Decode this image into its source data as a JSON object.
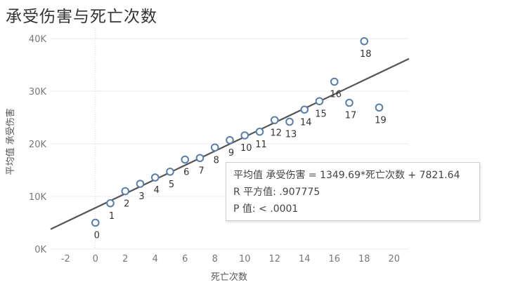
{
  "title": "承受伤害与死亡次数",
  "chart_data": {
    "type": "scatter",
    "title": "承受伤害与死亡次数",
    "xlabel": "死亡次数",
    "ylabel": "平均值 承受伤害",
    "xlim": [
      -3,
      21
    ],
    "ylim": [
      0,
      42000
    ],
    "x_ticks": [
      -2,
      0,
      2,
      4,
      6,
      8,
      10,
      12,
      14,
      16,
      18,
      20
    ],
    "y_ticks": [
      0,
      10000,
      20000,
      30000,
      40000
    ],
    "y_tick_labels": [
      "0K",
      "10K",
      "20K",
      "30K",
      "40K"
    ],
    "points": [
      {
        "x": 0,
        "y": 5000,
        "label": "0"
      },
      {
        "x": 1,
        "y": 8700,
        "label": "1"
      },
      {
        "x": 2,
        "y": 11000,
        "label": "2"
      },
      {
        "x": 3,
        "y": 12400,
        "label": "3"
      },
      {
        "x": 4,
        "y": 13600,
        "label": "4"
      },
      {
        "x": 5,
        "y": 14700,
        "label": "5"
      },
      {
        "x": 6,
        "y": 17000,
        "label": "6"
      },
      {
        "x": 7,
        "y": 17300,
        "label": "7"
      },
      {
        "x": 8,
        "y": 19300,
        "label": "8"
      },
      {
        "x": 9,
        "y": 20700,
        "label": "9"
      },
      {
        "x": 10,
        "y": 21600,
        "label": "10"
      },
      {
        "x": 11,
        "y": 22300,
        "label": "11"
      },
      {
        "x": 12,
        "y": 24500,
        "label": "12"
      },
      {
        "x": 13,
        "y": 24200,
        "label": "13"
      },
      {
        "x": 14,
        "y": 26500,
        "label": "14"
      },
      {
        "x": 15,
        "y": 28100,
        "label": "15"
      },
      {
        "x": 16,
        "y": 31800,
        "label": "16"
      },
      {
        "x": 17,
        "y": 27800,
        "label": "17"
      },
      {
        "x": 18,
        "y": 39500,
        "label": "18"
      },
      {
        "x": 19,
        "y": 26900,
        "label": "19"
      }
    ],
    "trend_line": {
      "slope": 1349.69,
      "intercept": 7821.64
    },
    "grid": true,
    "marker_color": "#5b7fa6",
    "trend_color": "#555555"
  },
  "tooltip": {
    "equation": "平均值 承受伤害 = 1349.69*死亡次数 + 7821.64",
    "r_squared": "R 平方值: .907775",
    "p_value": "P 值: < .0001"
  }
}
